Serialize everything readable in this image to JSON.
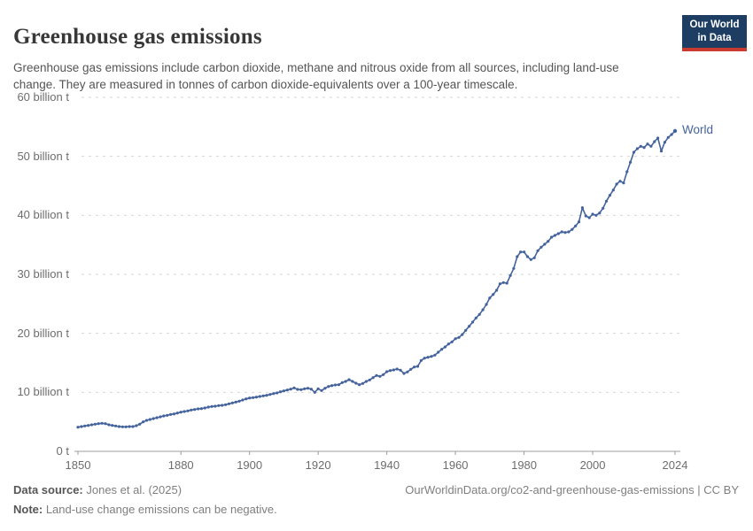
{
  "header": {
    "title": "Greenhouse gas emissions",
    "subtitle": "Greenhouse gas emissions include carbon dioxide, methane and nitrous oxide from all sources, including land-use change. They are measured in tonnes of carbon dioxide-equivalents over a 100-year timescale.",
    "logo": {
      "line1": "Our World",
      "line2": "in Data"
    }
  },
  "footer": {
    "source_label": "Data source:",
    "source_value": " Jones et al. (2025)",
    "right_text": "OurWorldinData.org/co2-and-greenhouse-gas-emissions | CC BY",
    "note_label": "Note:",
    "note_value": " Land-use change emissions can be negative."
  },
  "colors": {
    "series_blue": "#44639C",
    "grid": "#d7d7d7",
    "axis": "#9c9c9c",
    "logo_bg": "#1d3d63",
    "logo_red": "#c93a31"
  },
  "chart_data": {
    "type": "line",
    "title": "Greenhouse gas emissions",
    "unit": "billion t",
    "grid": "dashed-horizontal",
    "legend": "end-of-line-label",
    "x_start": 1850,
    "x_end": 2024,
    "xlim": [
      1850,
      2025
    ],
    "ylim": [
      0,
      60
    ],
    "x_ticks": [
      1850,
      1880,
      1900,
      1920,
      1940,
      1960,
      1980,
      2000,
      2024
    ],
    "y_ticks": [
      {
        "value": 0,
        "label": "0 t"
      },
      {
        "value": 10,
        "label": "10 billion t"
      },
      {
        "value": 20,
        "label": "20 billion t"
      },
      {
        "value": 30,
        "label": "30 billion t"
      },
      {
        "value": 40,
        "label": "40 billion t"
      },
      {
        "value": 50,
        "label": "50 billion t"
      },
      {
        "value": 60,
        "label": "60 billion t"
      }
    ],
    "series": [
      {
        "name": "World",
        "color": "#44639C",
        "start_year": 1850,
        "values": [
          4.1,
          4.2,
          4.3,
          4.4,
          4.5,
          4.6,
          4.7,
          4.75,
          4.7,
          4.5,
          4.4,
          4.3,
          4.2,
          4.15,
          4.15,
          4.2,
          4.2,
          4.35,
          4.6,
          5.0,
          5.25,
          5.4,
          5.55,
          5.7,
          5.85,
          6.0,
          6.1,
          6.25,
          6.35,
          6.5,
          6.65,
          6.75,
          6.85,
          7.0,
          7.1,
          7.2,
          7.25,
          7.35,
          7.5,
          7.6,
          7.65,
          7.75,
          7.8,
          7.9,
          8.05,
          8.2,
          8.35,
          8.5,
          8.7,
          8.9,
          9.05,
          9.1,
          9.2,
          9.3,
          9.4,
          9.5,
          9.65,
          9.8,
          9.9,
          10.1,
          10.25,
          10.4,
          10.55,
          10.75,
          10.5,
          10.45,
          10.6,
          10.7,
          10.55,
          10.0,
          10.6,
          10.3,
          10.7,
          11.0,
          11.15,
          11.25,
          11.3,
          11.65,
          11.85,
          12.15,
          11.85,
          11.55,
          11.3,
          11.5,
          11.85,
          12.1,
          12.5,
          12.85,
          12.7,
          13.0,
          13.5,
          13.7,
          13.8,
          13.95,
          13.75,
          13.2,
          13.45,
          13.9,
          14.3,
          14.4,
          15.4,
          15.8,
          15.95,
          16.1,
          16.3,
          16.8,
          17.3,
          17.7,
          18.2,
          18.55,
          19.1,
          19.3,
          19.8,
          20.5,
          21.2,
          21.9,
          22.6,
          23.2,
          24.0,
          24.9,
          26.0,
          26.6,
          27.3,
          28.4,
          28.6,
          28.5,
          29.8,
          31.0,
          33.0,
          33.8,
          33.8,
          33.0,
          32.5,
          32.8,
          34.0,
          34.6,
          35.1,
          35.6,
          36.3,
          36.6,
          36.9,
          37.2,
          37.1,
          37.2,
          37.6,
          38.2,
          38.9,
          41.3,
          39.9,
          39.6,
          40.2,
          40.0,
          40.4,
          41.2,
          42.4,
          43.4,
          44.3,
          45.3,
          45.8,
          45.5,
          47.4,
          49.0,
          50.7,
          51.3,
          51.7,
          51.5,
          52.1,
          51.7,
          52.5,
          53.1,
          50.9,
          52.4,
          53.2,
          53.7,
          54.3
        ]
      }
    ]
  }
}
